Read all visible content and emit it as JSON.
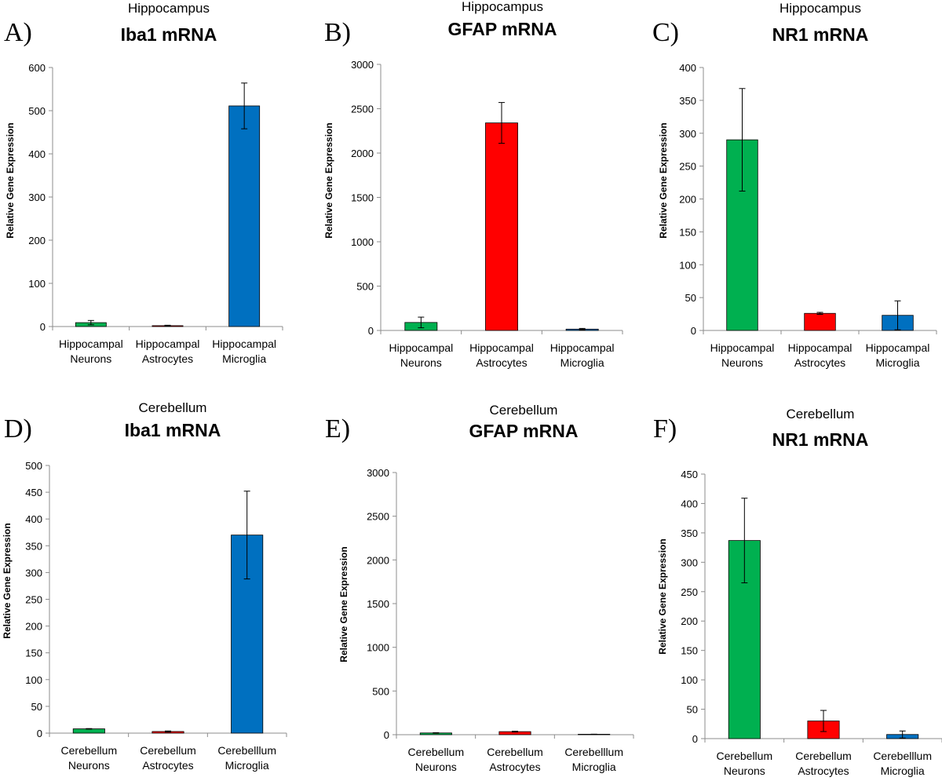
{
  "chart_data": [
    {
      "type": "bar",
      "panel": "A)",
      "subtitle": "Hippocampus",
      "title": "Iba1 mRNA",
      "ylabel": "Relative Gene Expression",
      "xlabel": "",
      "categories": [
        [
          "Hippocampal",
          "Neurons"
        ],
        [
          "Hippocampal",
          "Astrocytes"
        ],
        [
          "Hippocampal",
          "Microglia"
        ]
      ],
      "values": [
        9,
        2,
        511
      ],
      "errors": [
        5,
        1,
        53
      ],
      "ylim": [
        0,
        600
      ],
      "yticks": [
        0,
        100,
        200,
        300,
        400,
        500,
        600
      ],
      "colors": [
        "#00B050",
        "#FF0000",
        "#0070C0"
      ],
      "grid": false
    },
    {
      "type": "bar",
      "panel": "B)",
      "subtitle": "Hippocampus",
      "title": "GFAP mRNA",
      "ylabel": "Relative Gene Expression",
      "xlabel": "",
      "categories": [
        [
          "Hippocampal",
          "Neurons"
        ],
        [
          "Hippocampal",
          "Astrocytes"
        ],
        [
          "Hippocampal",
          "Microglia"
        ]
      ],
      "values": [
        90,
        2340,
        15
      ],
      "errors": [
        60,
        230,
        8
      ],
      "ylim": [
        0,
        3000
      ],
      "yticks": [
        0,
        500,
        1000,
        1500,
        2000,
        2500,
        3000
      ],
      "colors": [
        "#00B050",
        "#FF0000",
        "#0070C0"
      ],
      "grid": false
    },
    {
      "type": "bar",
      "panel": "C)",
      "subtitle": "Hippocampus",
      "title": "NR1 mRNA",
      "ylabel": "Relative Gene Expression",
      "xlabel": "",
      "categories": [
        [
          "Hippocampal",
          "Neurons"
        ],
        [
          "Hippocampal",
          "Astrocytes"
        ],
        [
          "Hippocampal",
          "Microglia"
        ]
      ],
      "values": [
        290,
        26,
        23
      ],
      "errors": [
        78,
        1.5,
        22
      ],
      "ylim": [
        0,
        400
      ],
      "yticks": [
        0,
        50,
        100,
        150,
        200,
        250,
        300,
        350,
        400
      ],
      "colors": [
        "#00B050",
        "#FF0000",
        "#0070C0"
      ],
      "grid": false
    },
    {
      "type": "bar",
      "panel": "D)",
      "subtitle": "Cerebellum",
      "title": "Iba1 mRNA",
      "ylabel": "Relative Gene Expression",
      "xlabel": "",
      "categories": [
        [
          "Cerebellum",
          "Neurons"
        ],
        [
          "Cerebellum",
          "Astrocytes"
        ],
        [
          "Cerebelllum",
          "Microglia"
        ]
      ],
      "values": [
        8,
        3,
        370
      ],
      "errors": [
        0.5,
        1,
        82
      ],
      "ylim": [
        0,
        500
      ],
      "yticks": [
        0,
        50,
        100,
        150,
        200,
        250,
        300,
        350,
        400,
        450,
        500
      ],
      "colors": [
        "#00B050",
        "#FF0000",
        "#0070C0"
      ],
      "grid": false
    },
    {
      "type": "bar",
      "panel": "E)",
      "subtitle": "Cerebellum",
      "title": "GFAP mRNA",
      "ylabel": "Relative Gene Expression",
      "xlabel": "",
      "categories": [
        [
          "Cerebellum",
          "Neurons"
        ],
        [
          "Cerebellum",
          "Astrocytes"
        ],
        [
          "Cerebelllum",
          "Microglia"
        ]
      ],
      "values": [
        20,
        35,
        5
      ],
      "errors": [
        3,
        5,
        1
      ],
      "ylim": [
        0,
        3000
      ],
      "yticks": [
        0,
        500,
        1000,
        1500,
        2000,
        2500,
        3000
      ],
      "colors": [
        "#00B050",
        "#FF0000",
        "#0070C0"
      ],
      "grid": false
    },
    {
      "type": "bar",
      "panel": "F)",
      "subtitle": "Cerebellum",
      "title": "NR1 mRNA",
      "ylabel": "Relative Gene Expression",
      "xlabel": "",
      "categories": [
        [
          "Cerebellum",
          "Neurons"
        ],
        [
          "Cerebellum",
          "Astrocytes"
        ],
        [
          "Cerebelllum",
          "Microglia"
        ]
      ],
      "values": [
        337,
        30,
        7
      ],
      "errors": [
        72,
        18,
        6
      ],
      "ylim": [
        0,
        450
      ],
      "yticks": [
        0,
        50,
        100,
        150,
        200,
        250,
        300,
        350,
        400,
        450
      ],
      "colors": [
        "#00B050",
        "#FF0000",
        "#0070C0"
      ],
      "grid": false
    }
  ]
}
